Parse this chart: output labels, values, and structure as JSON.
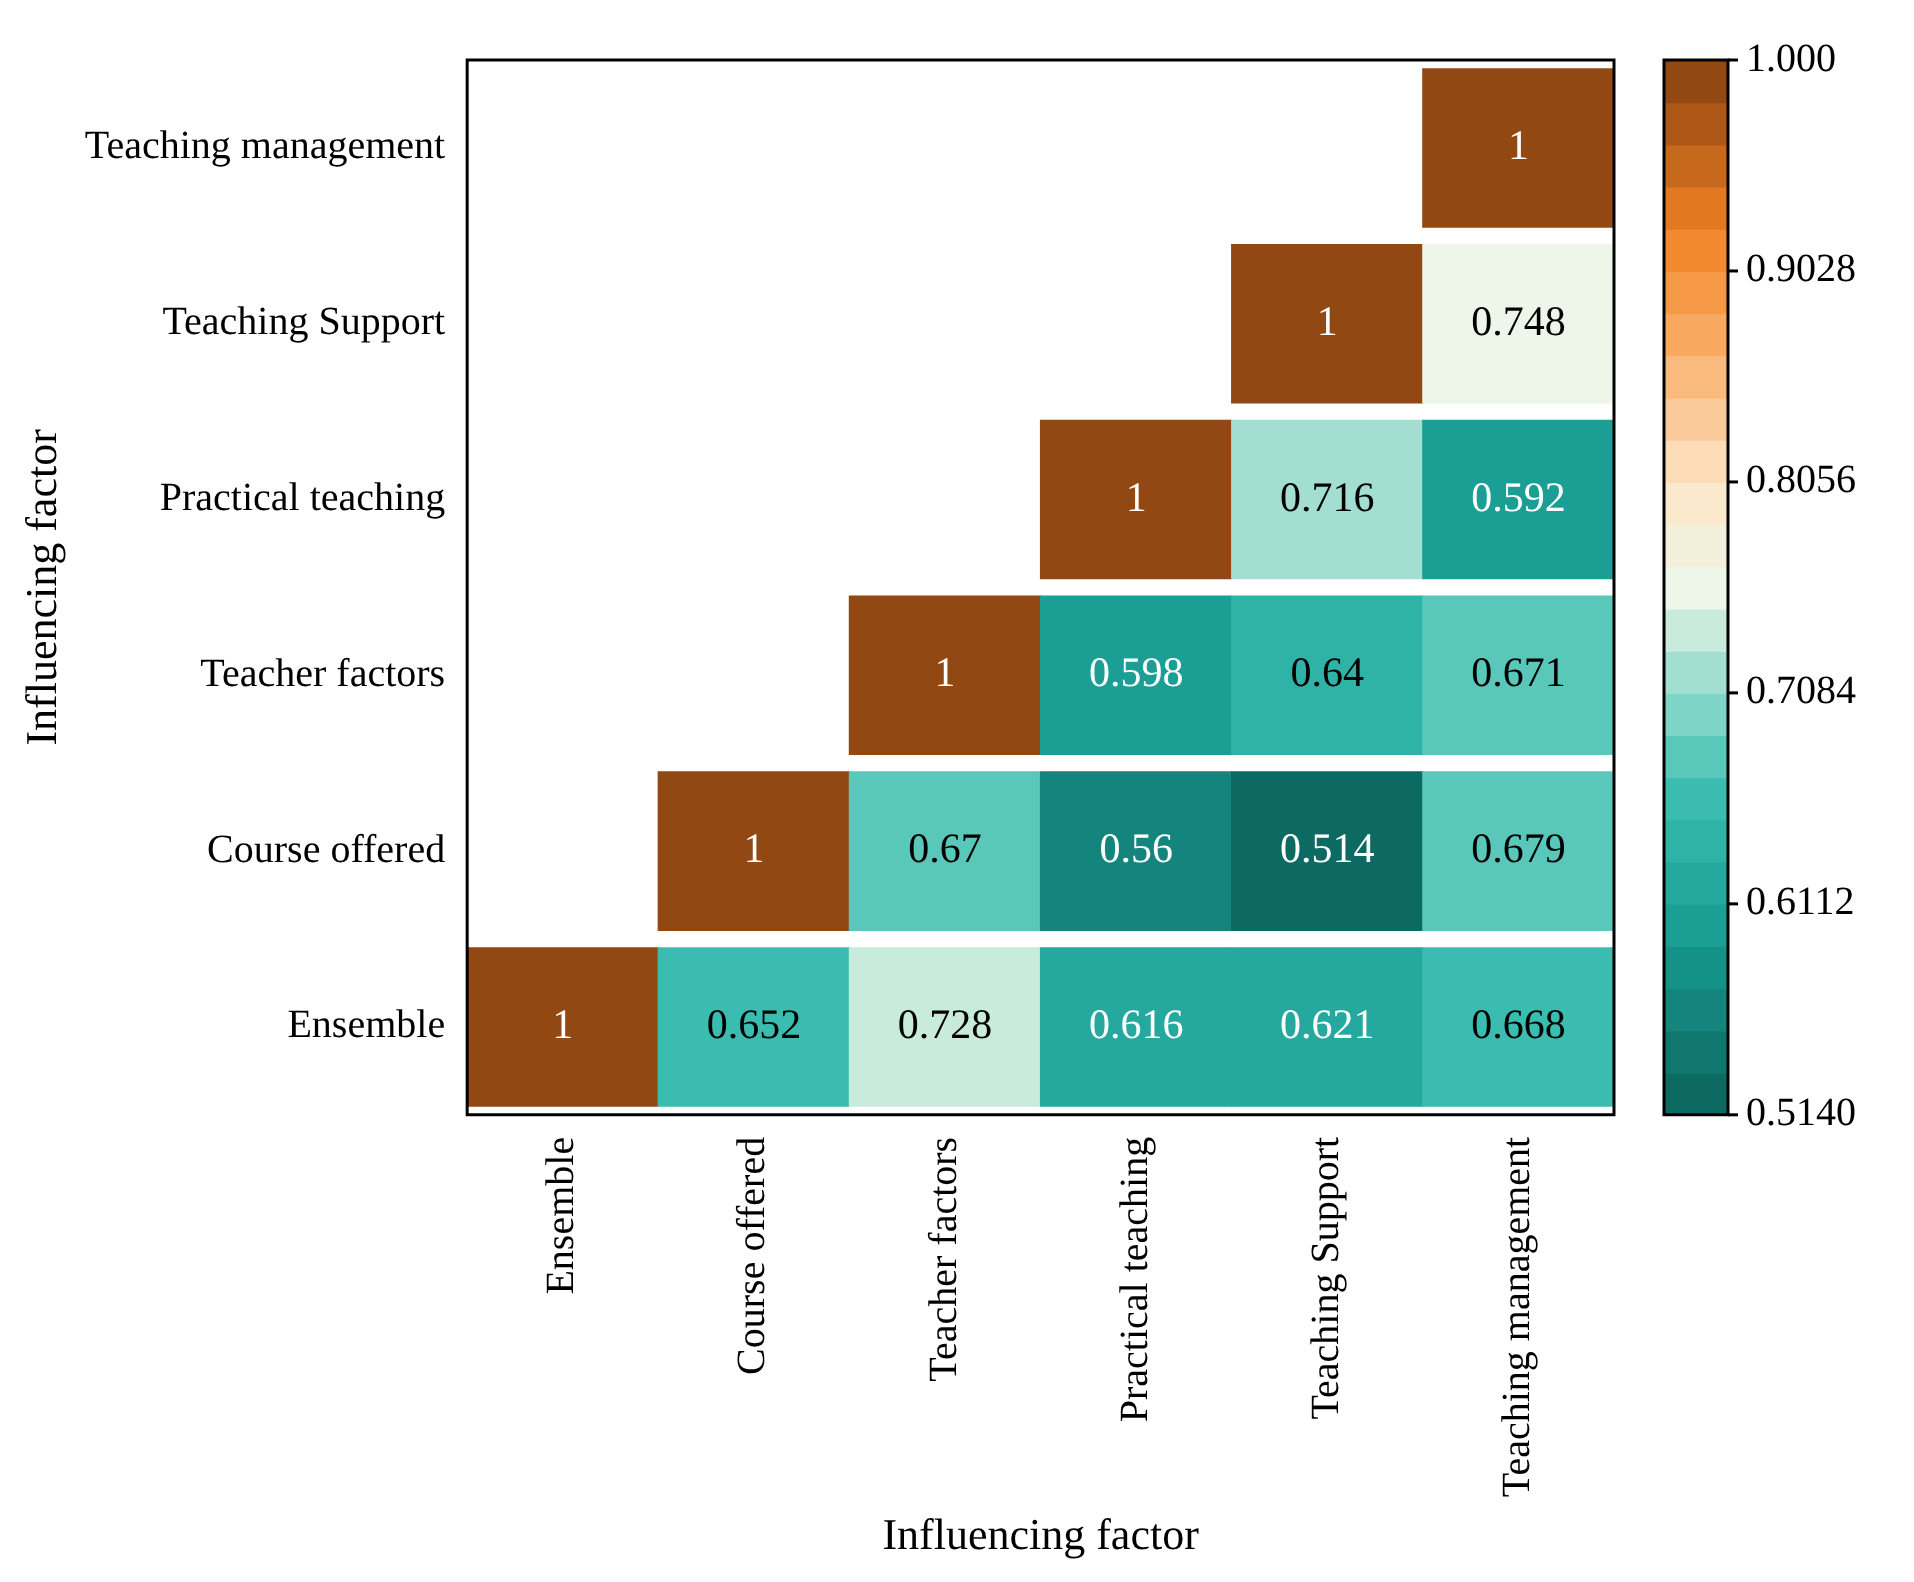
{
  "chart_data": {
    "type": "heatmap",
    "xlabel": "Influencing factor",
    "ylabel": "Influencing factor",
    "categories": [
      "Ensemble",
      "Course offered",
      "Teacher factors",
      "Practical teaching",
      "Teaching Support",
      "Teaching management"
    ],
    "y_categories": [
      "Teaching management",
      "Teaching Support",
      "Practical teaching",
      "Teacher factors",
      "Course offered",
      "Ensemble"
    ],
    "cells": [
      [
        null,
        null,
        null,
        null,
        null,
        1
      ],
      [
        null,
        null,
        null,
        null,
        1,
        0.748
      ],
      [
        null,
        null,
        null,
        1,
        0.716,
        0.592
      ],
      [
        null,
        null,
        1,
        0.598,
        0.64,
        0.671
      ],
      [
        null,
        1,
        0.67,
        0.56,
        0.514,
        0.679
      ],
      [
        1,
        0.652,
        0.728,
        0.616,
        0.621,
        0.668
      ]
    ],
    "clim": [
      0.514,
      1.0
    ],
    "cticks": [
      {
        "value": 0.514,
        "label": "0.5140"
      },
      {
        "value": 0.6112,
        "label": "0.6112"
      },
      {
        "value": 0.7084,
        "label": "0.7084"
      },
      {
        "value": 0.8056,
        "label": "0.8056"
      },
      {
        "value": 0.9028,
        "label": "0.9028"
      },
      {
        "value": 1.0,
        "label": "1.000"
      }
    ],
    "data_labels": true
  }
}
